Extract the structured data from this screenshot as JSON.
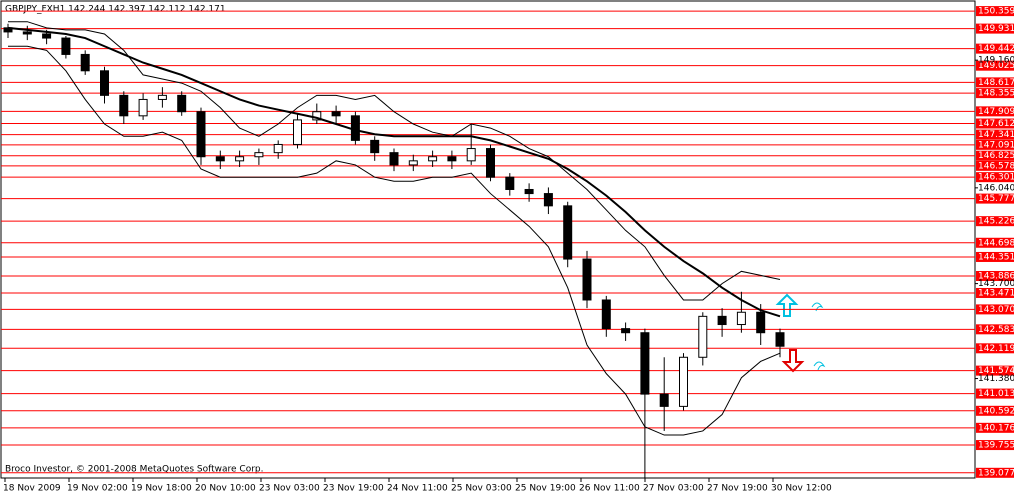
{
  "chart_data": {
    "type": "candlestick",
    "title": "GBPJPY_FXH1  142.244 142.397 142.112 142.171",
    "annotation": "Broco Investor, © 2001-2008 MetaQuotes Software Corp.",
    "xticks": [
      "18 Nov 2009",
      "19 Nov 02:00",
      "19 Nov 18:00",
      "20 Nov 10:00",
      "23 Nov 03:00",
      "23 Nov 19:00",
      "24 Nov 11:00",
      "25 Nov 03:00",
      "25 Nov 19:00",
      "26 Nov 11:00",
      "27 Nov 03:00",
      "27 Nov 19:00",
      "30 Nov 12:00"
    ],
    "open": [
      149.95,
      149.85,
      149.8,
      149.7,
      149.3,
      148.9,
      148.3,
      147.8,
      148.2,
      148.3,
      147.9,
      146.8,
      146.7,
      146.8,
      146.9,
      147.1,
      147.7,
      147.9,
      147.8,
      147.2,
      146.9,
      146.6,
      146.7,
      146.8,
      146.7,
      147.0,
      146.3,
      146.0,
      145.9,
      145.6,
      144.3,
      143.3,
      142.6,
      142.5,
      141.0,
      140.7,
      141.9,
      142.9,
      142.7,
      143.0,
      142.5
    ],
    "high": [
      150.05,
      150.0,
      149.9,
      149.75,
      149.4,
      149.0,
      148.4,
      148.35,
      148.5,
      148.4,
      148.0,
      146.95,
      146.95,
      147.0,
      147.2,
      147.85,
      148.1,
      148.05,
      147.9,
      147.3,
      147.0,
      146.85,
      146.95,
      146.95,
      147.6,
      147.1,
      146.4,
      146.15,
      146.05,
      145.7,
      144.5,
      143.4,
      142.75,
      142.6,
      141.9,
      142.0,
      143.0,
      143.1,
      143.5,
      143.2,
      142.6
    ],
    "low": [
      149.7,
      149.65,
      149.55,
      149.2,
      148.8,
      148.1,
      147.6,
      147.7,
      148.0,
      147.8,
      146.6,
      146.5,
      146.55,
      146.6,
      146.75,
      147.0,
      147.6,
      147.6,
      147.1,
      146.7,
      146.45,
      146.45,
      146.55,
      146.5,
      146.6,
      146.2,
      145.85,
      145.7,
      145.4,
      144.1,
      143.1,
      142.4,
      142.3,
      138.95,
      140.1,
      140.6,
      141.7,
      142.4,
      142.5,
      142.2,
      141.9
    ],
    "close": [
      149.85,
      149.8,
      149.7,
      149.3,
      148.9,
      148.3,
      147.8,
      148.2,
      148.3,
      147.9,
      146.8,
      146.7,
      146.8,
      146.9,
      147.1,
      147.7,
      147.9,
      147.8,
      147.2,
      146.9,
      146.6,
      146.7,
      146.8,
      146.7,
      147.0,
      146.3,
      146.0,
      145.9,
      145.6,
      144.3,
      143.3,
      142.6,
      142.5,
      141.0,
      140.7,
      141.9,
      142.9,
      142.7,
      143.0,
      142.5,
      142.17
    ],
    "overlays": [
      {
        "color": "#000000",
        "width": 2,
        "values": [
          149.95,
          149.9,
          149.85,
          149.8,
          149.7,
          149.5,
          149.3,
          149.1,
          148.95,
          148.8,
          148.6,
          148.4,
          148.2,
          148.05,
          147.95,
          147.85,
          147.75,
          147.6,
          147.45,
          147.35,
          147.3,
          147.3,
          147.3,
          147.3,
          147.3,
          147.2,
          147.05,
          146.9,
          146.75,
          146.5,
          146.2,
          145.85,
          145.45,
          145.0,
          144.6,
          144.25,
          143.95,
          143.6,
          143.3,
          143.05,
          142.9
        ]
      },
      {
        "color": "#000000",
        "width": 1,
        "values": [
          150.1,
          150.1,
          149.95,
          149.9,
          149.9,
          149.8,
          149.4,
          148.8,
          148.7,
          148.6,
          148.4,
          148.0,
          147.5,
          147.3,
          147.6,
          148.0,
          148.3,
          148.3,
          148.2,
          148.3,
          147.9,
          147.6,
          147.4,
          147.3,
          147.6,
          147.5,
          147.3,
          147.0,
          146.8,
          146.4,
          146.0,
          145.5,
          145.0,
          144.6,
          143.9,
          143.3,
          143.3,
          143.7,
          144.0,
          143.9,
          143.8
        ]
      },
      {
        "color": "#000000",
        "width": 1,
        "values": [
          149.5,
          149.5,
          149.4,
          148.9,
          148.2,
          147.6,
          147.3,
          147.3,
          147.4,
          147.2,
          146.5,
          146.3,
          146.3,
          146.3,
          146.3,
          146.3,
          146.4,
          146.7,
          146.6,
          146.3,
          146.2,
          146.2,
          146.3,
          146.3,
          146.4,
          145.9,
          145.5,
          145.1,
          144.6,
          143.6,
          142.2,
          141.5,
          141.0,
          140.2,
          140.0,
          140.0,
          140.1,
          140.5,
          141.4,
          141.8,
          142.0
        ]
      }
    ],
    "level_color": "#ff0000",
    "levels": [
      150.359,
      149.931,
      149.442,
      149.025,
      148.617,
      148.355,
      147.909,
      147.612,
      147.341,
      147.091,
      146.825,
      146.578,
      146.301,
      145.777,
      145.226,
      144.698,
      144.351,
      143.886,
      143.471,
      {
        "value": 143.07,
        "label": "143.070"
      },
      142.583,
      142.119,
      141.574,
      141.013,
      140.592,
      140.176,
      139.755,
      139.077
    ],
    "ylim": [
      138.95,
      150.63
    ],
    "yticks": [
      {
        "value": 149.16,
        "label": "149.160"
      },
      {
        "value": 146.04,
        "label": "146.040"
      },
      {
        "value": 143.7,
        "label": "143.700"
      },
      {
        "value": 141.38,
        "label": "141.380"
      }
    ]
  }
}
